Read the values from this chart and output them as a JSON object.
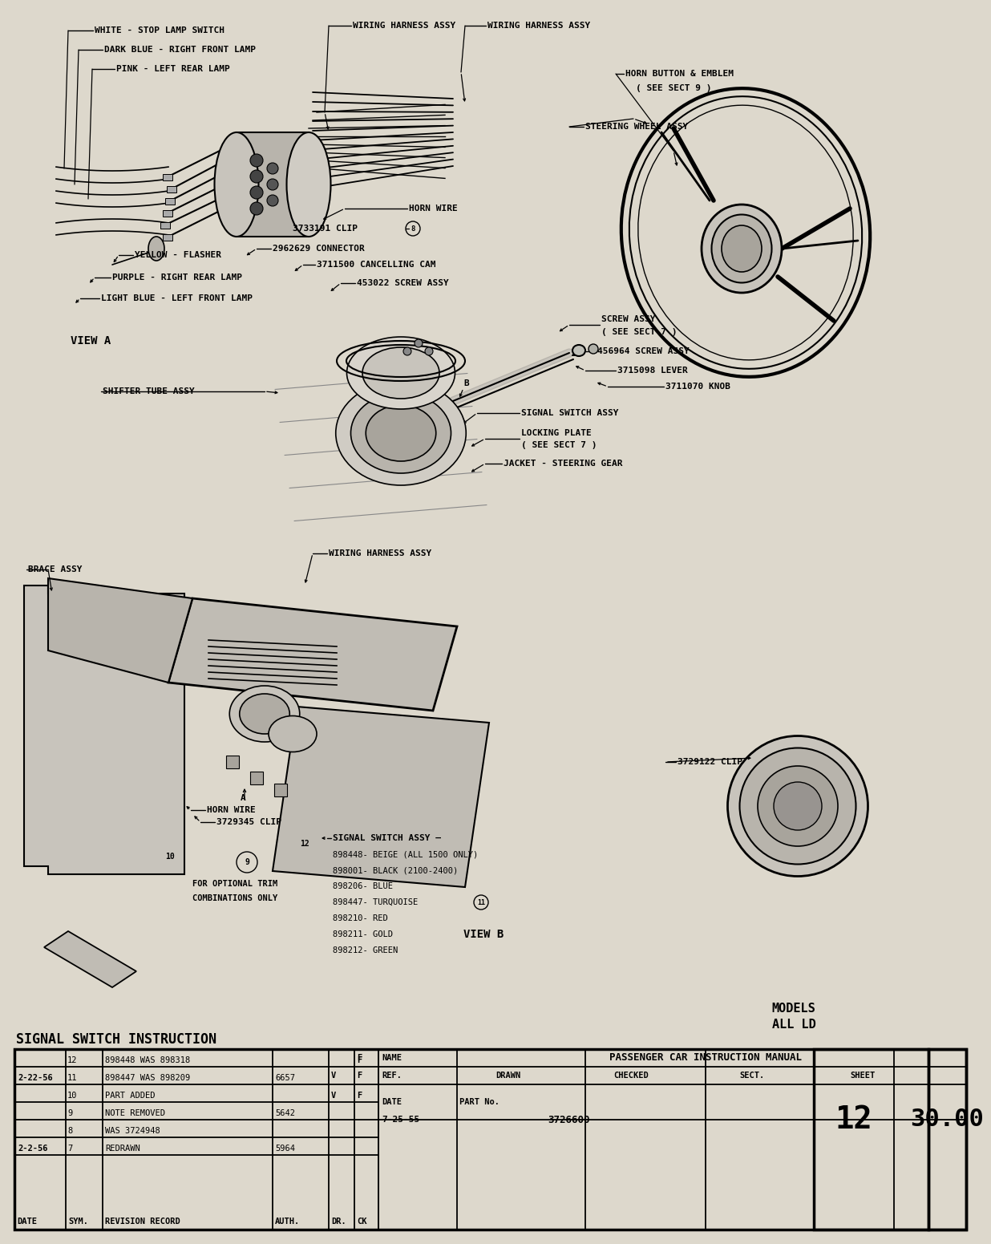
{
  "bg_color": "#ddd8cc",
  "fig_width": 12.03,
  "fig_height": 15.31,
  "main_title": "SIGNAL SWITCH INSTRUCTION",
  "models_text": "MODELS",
  "models_text2": "ALL LD",
  "table_title_name": "PASSENGER CAR INSTRUCTION MANUAL",
  "part_no": "3726600",
  "date": "7-25-55",
  "sect": "12",
  "sheet": "30.00",
  "revision_rows": [
    [
      "",
      "12",
      "898448 WAS 898318",
      "",
      "",
      "F"
    ],
    [
      "2-22-56",
      "11",
      "898447 WAS 898209",
      "6657",
      "",
      ""
    ],
    [
      "",
      "10",
      "PART ADDED",
      "",
      "V",
      "F"
    ],
    [
      "",
      "9",
      "NOTE REMOVED",
      "5642",
      "",
      ""
    ],
    [
      "",
      "8",
      "WAS 3724948",
      "",
      "",
      ""
    ],
    [
      "2-2-56",
      "7",
      "REDRAWN",
      "5964",
      "",
      ""
    ]
  ],
  "revision_header": [
    "DATE",
    "SYM.",
    "REVISION RECORD",
    "AUTH.",
    "DR.",
    "CK"
  ],
  "view_a": "VIEW A",
  "view_b": "VIEW B",
  "signal_switch_lines": [
    "SIGNAL SWITCH ASSY —",
    "898448- BEIGE (ALL 1500 ONLY)",
    "898001- BLACK (2100-2400)",
    "898206- BLUE",
    "898447- TURQUOISE",
    "898210- RED",
    "898211- GOLD",
    "898212- GREEN"
  ],
  "optional_trim": "FOR OPTIONAL TRIM\nCOMBINATIONS ONLY"
}
